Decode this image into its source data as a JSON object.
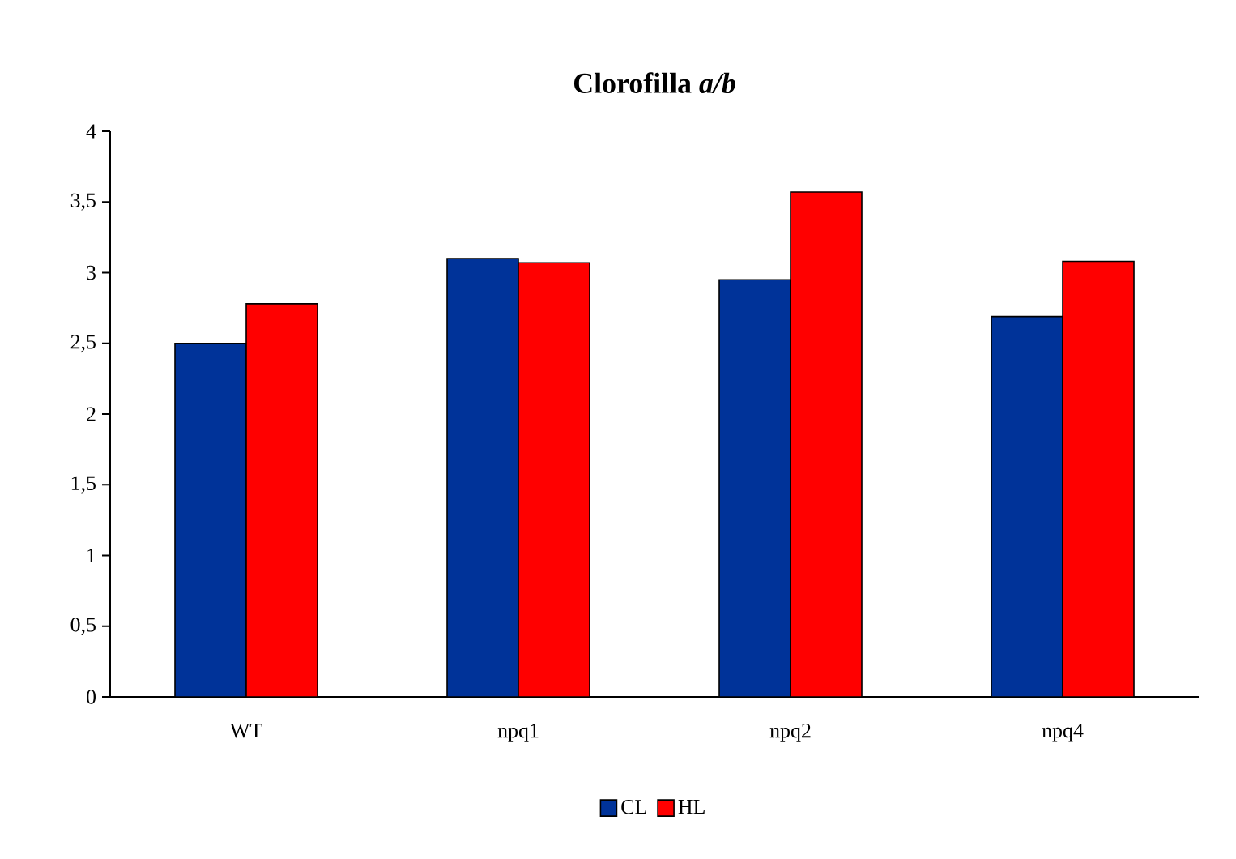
{
  "chart_data": {
    "type": "bar",
    "title": "Clorofilla *a/b*",
    "categories": [
      "WT",
      "npq1",
      "npq2",
      "npq4"
    ],
    "series": [
      {
        "name": "CL",
        "color": "#003399",
        "values": [
          2.5,
          3.1,
          2.95,
          2.69
        ]
      },
      {
        "name": "HL",
        "color": "#ff0000",
        "values": [
          2.78,
          3.07,
          3.57,
          3.08
        ]
      }
    ],
    "ylim": [
      0,
      4
    ],
    "yticks": [
      0,
      {
        "value": 0.5,
        "label": "0,5"
      },
      1,
      {
        "value": 1.5,
        "label": "1,5"
      },
      2,
      {
        "value": 2.5,
        "label": "2,5"
      },
      3,
      {
        "value": 3.5,
        "label": "3,5"
      },
      4
    ],
    "legend": "bottom"
  }
}
